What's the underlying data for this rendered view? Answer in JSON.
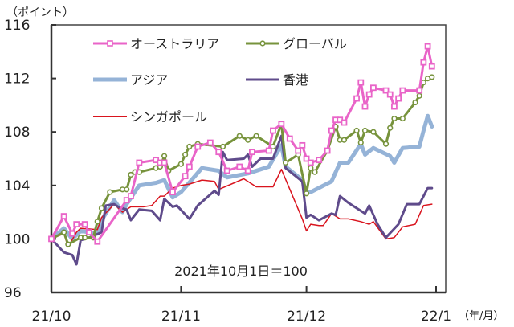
{
  "chart_data": {
    "type": "line",
    "ylabel": "（ポイント）",
    "xlabel": "（年/月）",
    "annotation": "2021年10月1日＝100",
    "ylim": [
      96,
      116
    ],
    "yticks": [
      "96",
      "100",
      "104",
      "108",
      "112",
      "116"
    ],
    "xlim": [
      "2021-10-01",
      "2022-01-01"
    ],
    "xticks": [
      {
        "date": "2021-10-01",
        "label": "21/10"
      },
      {
        "date": "2021-11-01",
        "label": "21/11"
      },
      {
        "date": "2021-12-01",
        "label": "21/12"
      },
      {
        "date": "2022-01-01",
        "label": "22/1"
      }
    ],
    "grid": false,
    "legend": "top-left, inside plot",
    "series": [
      {
        "name": "オーストラリア",
        "color": "#e964c8",
        "marker": "square",
        "width": 3,
        "points": [
          [
            "2021-10-01",
            100
          ],
          [
            "2021-10-04",
            101.7
          ],
          [
            "2021-10-06",
            100.4
          ],
          [
            "2021-10-07",
            101.1
          ],
          [
            "2021-10-09",
            101.1
          ],
          [
            "2021-10-10",
            100.5
          ],
          [
            "2021-10-12",
            99.8
          ],
          [
            "2021-10-19",
            102.9
          ],
          [
            "2021-10-20",
            103.2
          ],
          [
            "2021-10-22",
            105.7
          ],
          [
            "2021-10-26",
            105.9
          ],
          [
            "2021-10-27",
            105.7
          ],
          [
            "2021-10-28",
            105.7
          ],
          [
            "2021-10-30",
            103.5
          ],
          [
            "2021-11-02",
            104.7
          ],
          [
            "2021-11-03",
            105.4
          ],
          [
            "2021-11-05",
            106.9
          ],
          [
            "2021-11-08",
            107.2
          ],
          [
            "2021-11-10",
            106.5
          ],
          [
            "2021-11-12",
            105.1
          ],
          [
            "2021-11-15",
            105.4
          ],
          [
            "2021-11-17",
            105.1
          ],
          [
            "2021-11-18",
            106.5
          ],
          [
            "2021-11-22",
            106.6
          ],
          [
            "2021-11-23",
            108.1
          ],
          [
            "2021-11-25",
            108.6
          ],
          [
            "2021-11-27",
            107.5
          ],
          [
            "2021-11-29",
            106.6
          ],
          [
            "2021-11-30",
            107.0
          ],
          [
            "2021-12-01",
            106.0
          ],
          [
            "2021-12-02",
            105.7
          ],
          [
            "2021-12-04",
            105.9
          ],
          [
            "2021-12-06",
            106.6
          ],
          [
            "2021-12-07",
            108.1
          ],
          [
            "2021-12-08",
            108.9
          ],
          [
            "2021-12-09",
            108.9
          ],
          [
            "2021-12-10",
            108.7
          ],
          [
            "2021-12-13",
            110.5
          ],
          [
            "2021-12-14",
            111.7
          ],
          [
            "2021-12-15",
            109.9
          ],
          [
            "2021-12-16",
            110.8
          ],
          [
            "2021-12-17",
            111.3
          ],
          [
            "2021-12-20",
            111.1
          ],
          [
            "2021-12-21",
            110.8
          ],
          [
            "2021-12-22",
            109.9
          ],
          [
            "2021-12-23",
            110.5
          ],
          [
            "2021-12-24",
            111.1
          ],
          [
            "2021-12-28",
            111.1
          ],
          [
            "2021-12-29",
            113.2
          ],
          [
            "2021-12-30",
            114.4
          ],
          [
            "2021-12-31",
            112.9
          ]
        ]
      },
      {
        "name": "グローバル",
        "color": "#77933c",
        "marker": "circle",
        "width": 3,
        "points": [
          [
            "2021-10-01",
            100
          ],
          [
            "2021-10-04",
            100.5
          ],
          [
            "2021-10-05",
            99.6
          ],
          [
            "2021-10-08",
            100.1
          ],
          [
            "2021-10-09",
            100.1
          ],
          [
            "2021-10-11",
            100.1
          ],
          [
            "2021-10-12",
            101.3
          ],
          [
            "2021-10-13",
            102.3
          ],
          [
            "2021-10-15",
            103.5
          ],
          [
            "2021-10-18",
            103.7
          ],
          [
            "2021-10-19",
            103.7
          ],
          [
            "2021-10-20",
            104.8
          ],
          [
            "2021-10-21",
            105.0
          ],
          [
            "2021-10-22",
            105.0
          ],
          [
            "2021-10-26",
            105.3
          ],
          [
            "2021-10-27",
            105.4
          ],
          [
            "2021-10-28",
            106.2
          ],
          [
            "2021-10-29",
            105.1
          ],
          [
            "2021-11-01",
            105.6
          ],
          [
            "2021-11-02",
            106.3
          ],
          [
            "2021-11-03",
            106.9
          ],
          [
            "2021-11-05",
            107.1
          ],
          [
            "2021-11-11",
            106.9
          ],
          [
            "2021-11-15",
            107.7
          ],
          [
            "2021-11-17",
            107.4
          ],
          [
            "2021-11-19",
            107.7
          ],
          [
            "2021-11-23",
            106.9
          ],
          [
            "2021-11-25",
            108.6
          ],
          [
            "2021-11-26",
            105.7
          ],
          [
            "2021-11-29",
            106.3
          ],
          [
            "2021-12-01",
            103.4
          ],
          [
            "2021-12-02",
            105.3
          ],
          [
            "2021-12-03",
            105.0
          ],
          [
            "2021-12-06",
            106.6
          ],
          [
            "2021-12-08",
            108.4
          ],
          [
            "2021-12-09",
            107.4
          ],
          [
            "2021-12-10",
            107.4
          ],
          [
            "2021-12-13",
            108.1
          ],
          [
            "2021-12-14",
            107.2
          ],
          [
            "2021-12-15",
            108.1
          ],
          [
            "2021-12-17",
            108.0
          ],
          [
            "2021-12-20",
            107.1
          ],
          [
            "2021-12-21",
            108.3
          ],
          [
            "2021-12-22",
            109.0
          ],
          [
            "2021-12-24",
            109.0
          ],
          [
            "2021-12-27",
            110.2
          ],
          [
            "2021-12-28",
            110.7
          ],
          [
            "2021-12-29",
            111.7
          ],
          [
            "2021-12-30",
            112.0
          ],
          [
            "2021-12-31",
            112.1
          ]
        ]
      },
      {
        "name": "アジア",
        "color": "#95b3d7",
        "marker": "none",
        "width": 5,
        "points": [
          [
            "2021-10-01",
            100
          ],
          [
            "2021-10-04",
            100.8
          ],
          [
            "2021-10-06",
            100
          ],
          [
            "2021-10-08",
            100.6
          ],
          [
            "2021-10-12",
            100.4
          ],
          [
            "2021-10-13",
            101.4
          ],
          [
            "2021-10-16",
            102.9
          ],
          [
            "2021-10-18",
            102.0
          ],
          [
            "2021-10-19",
            102.6
          ],
          [
            "2021-10-22",
            104.0
          ],
          [
            "2021-10-26",
            104.2
          ],
          [
            "2021-10-28",
            104.4
          ],
          [
            "2021-10-30",
            103.1
          ],
          [
            "2021-11-01",
            103.5
          ],
          [
            "2021-11-06",
            105.3
          ],
          [
            "2021-11-10",
            105.1
          ],
          [
            "2021-11-12",
            104.6
          ],
          [
            "2021-11-17",
            104.9
          ],
          [
            "2021-11-18",
            105.0
          ],
          [
            "2021-11-22",
            105.4
          ],
          [
            "2021-11-25",
            107.0
          ],
          [
            "2021-11-26",
            105.4
          ],
          [
            "2021-11-30",
            104.4
          ],
          [
            "2021-12-01",
            103.5
          ],
          [
            "2021-12-02",
            103.5
          ],
          [
            "2021-12-07",
            104.3
          ],
          [
            "2021-12-09",
            105.7
          ],
          [
            "2021-12-11",
            105.7
          ],
          [
            "2021-12-14",
            107.1
          ],
          [
            "2021-12-15",
            106.3
          ],
          [
            "2021-12-17",
            106.8
          ],
          [
            "2021-12-21",
            106.2
          ],
          [
            "2021-12-22",
            105.7
          ],
          [
            "2021-12-24",
            106.8
          ],
          [
            "2021-12-28",
            106.9
          ],
          [
            "2021-12-29",
            108.1
          ],
          [
            "2021-12-30",
            109.2
          ],
          [
            "2021-12-31",
            108.4
          ]
        ]
      },
      {
        "name": "香港",
        "color": "#5f4b8b",
        "marker": "none",
        "width": 3,
        "points": [
          [
            "2021-10-01",
            100
          ],
          [
            "2021-10-04",
            99.0
          ],
          [
            "2021-10-06",
            98.8
          ],
          [
            "2021-10-07",
            98.1
          ],
          [
            "2021-10-08",
            99.9
          ],
          [
            "2021-10-10",
            100.1
          ],
          [
            "2021-10-13",
            100.5
          ],
          [
            "2021-10-14",
            102.5
          ],
          [
            "2021-10-16",
            102.6
          ],
          [
            "2021-10-17",
            102.4
          ],
          [
            "2021-10-19",
            102.2
          ],
          [
            "2021-10-20",
            101.4
          ],
          [
            "2021-10-22",
            102.2
          ],
          [
            "2021-10-25",
            102.1
          ],
          [
            "2021-10-27",
            101.4
          ],
          [
            "2021-10-28",
            103.0
          ],
          [
            "2021-10-30",
            102.4
          ],
          [
            "2021-10-31",
            102.5
          ],
          [
            "2021-11-03",
            101.5
          ],
          [
            "2021-11-05",
            102.5
          ],
          [
            "2021-11-09",
            103.6
          ],
          [
            "2021-11-10",
            103.3
          ],
          [
            "2021-11-11",
            106.5
          ],
          [
            "2021-11-12",
            105.9
          ],
          [
            "2021-11-16",
            106.0
          ],
          [
            "2021-11-17",
            106.3
          ],
          [
            "2021-11-18",
            105.4
          ],
          [
            "2021-11-20",
            106.0
          ],
          [
            "2021-11-23",
            106.0
          ],
          [
            "2021-11-25",
            107.7
          ],
          [
            "2021-11-26",
            105.3
          ],
          [
            "2021-11-30",
            104.3
          ],
          [
            "2021-12-01",
            101.6
          ],
          [
            "2021-12-02",
            101.8
          ],
          [
            "2021-12-04",
            101.4
          ],
          [
            "2021-12-07",
            101.9
          ],
          [
            "2021-12-08",
            101.8
          ],
          [
            "2021-12-09",
            103.2
          ],
          [
            "2021-12-11",
            102.7
          ],
          [
            "2021-12-15",
            101.9
          ],
          [
            "2021-12-16",
            102.5
          ],
          [
            "2021-12-18",
            101.1
          ],
          [
            "2021-12-20",
            100.1
          ],
          [
            "2021-12-23",
            101.1
          ],
          [
            "2021-12-25",
            102.6
          ],
          [
            "2021-12-28",
            102.6
          ],
          [
            "2021-12-30",
            103.8
          ],
          [
            "2021-12-31",
            103.8
          ]
        ]
      },
      {
        "name": "シンガポール",
        "color": "#d9141e",
        "marker": "none",
        "width": 1.5,
        "points": [
          [
            "2021-10-01",
            100
          ],
          [
            "2021-10-04",
            100.4
          ],
          [
            "2021-10-05",
            99.4
          ],
          [
            "2021-10-07",
            100.5
          ],
          [
            "2021-10-08",
            100.8
          ],
          [
            "2021-10-12",
            100.7
          ],
          [
            "2021-10-13",
            101.6
          ],
          [
            "2021-10-16",
            102.6
          ],
          [
            "2021-10-18",
            102.0
          ],
          [
            "2021-10-20",
            102.4
          ],
          [
            "2021-10-23",
            102.4
          ],
          [
            "2021-10-25",
            102.5
          ],
          [
            "2021-10-27",
            103.2
          ],
          [
            "2021-10-28",
            103.2
          ],
          [
            "2021-10-30",
            103.8
          ],
          [
            "2021-11-01",
            104.0
          ],
          [
            "2021-11-03",
            104.1
          ],
          [
            "2021-11-06",
            104.4
          ],
          [
            "2021-11-09",
            104.3
          ],
          [
            "2021-11-10",
            103.7
          ],
          [
            "2021-11-16",
            104.5
          ],
          [
            "2021-11-19",
            103.9
          ],
          [
            "2021-11-23",
            103.9
          ],
          [
            "2021-11-25",
            105.2
          ],
          [
            "2021-11-30",
            101.5
          ],
          [
            "2021-12-01",
            100.6
          ],
          [
            "2021-12-02",
            101.1
          ],
          [
            "2021-12-04",
            101.0
          ],
          [
            "2021-12-05",
            101.0
          ],
          [
            "2021-12-07",
            101.9
          ],
          [
            "2021-12-09",
            101.5
          ],
          [
            "2021-12-11",
            101.5
          ],
          [
            "2021-12-14",
            101.3
          ],
          [
            "2021-12-16",
            101.1
          ],
          [
            "2021-12-17",
            101.3
          ],
          [
            "2021-12-20",
            100.0
          ],
          [
            "2021-12-22",
            100.1
          ],
          [
            "2021-12-24",
            100.9
          ],
          [
            "2021-12-27",
            101.1
          ],
          [
            "2021-12-29",
            102.5
          ],
          [
            "2021-12-31",
            102.6
          ]
        ]
      }
    ]
  }
}
